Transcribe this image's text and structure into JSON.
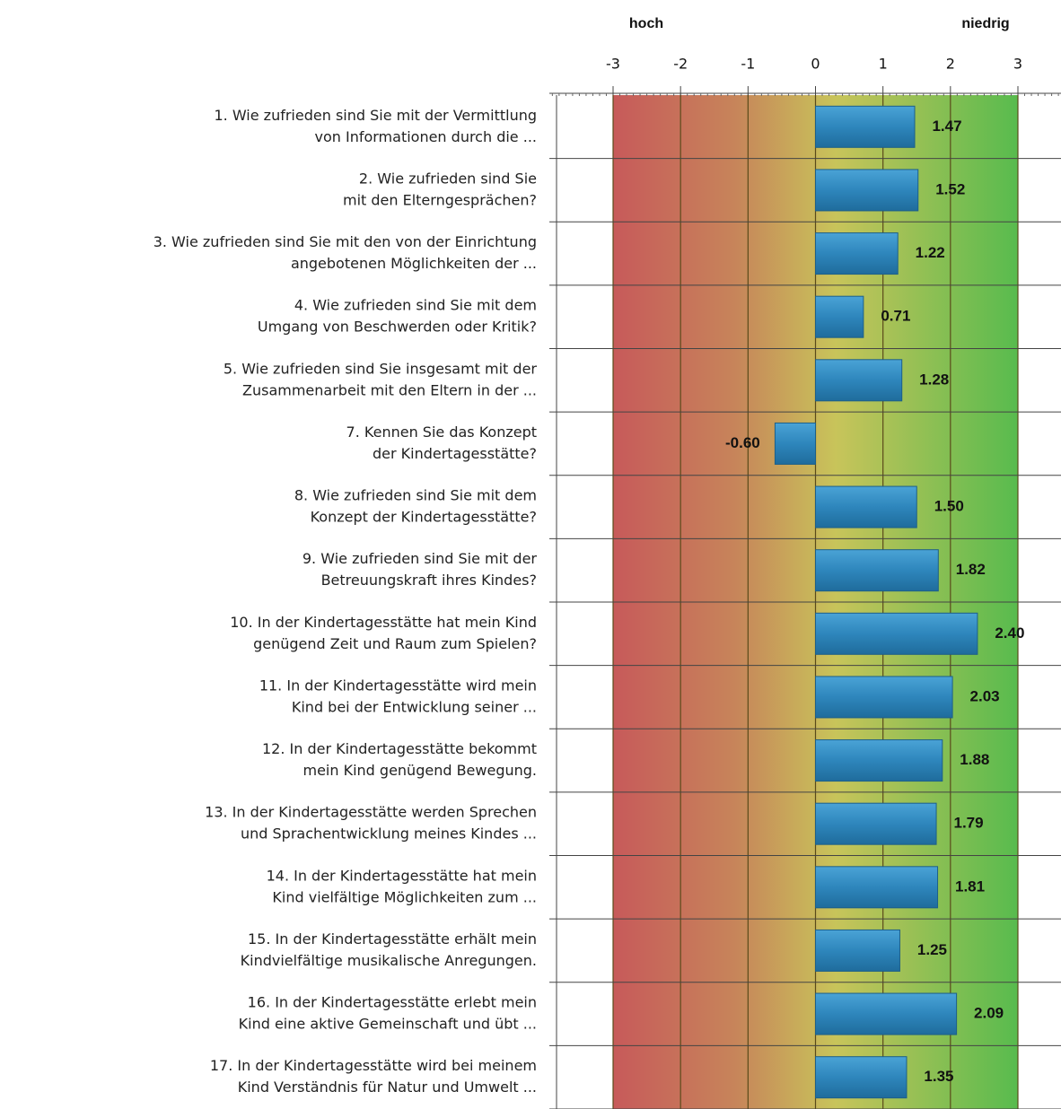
{
  "chart_data": {
    "type": "bar",
    "orientation": "horizontal",
    "left_label": "hoch",
    "right_label": "niedrig",
    "categories": [
      [
        "1. Wie zufrieden sind Sie mit der Vermittlung",
        "von Informationen durch die ..."
      ],
      [
        "2. Wie zufrieden sind Sie",
        "mit den Elterngesprächen?"
      ],
      [
        "3. Wie zufrieden sind Sie mit den von der Einrichtung",
        "angebotenen Möglichkeiten der ..."
      ],
      [
        "4. Wie zufrieden sind Sie mit dem",
        "Umgang von Beschwerden oder Kritik?"
      ],
      [
        "5. Wie zufrieden sind Sie insgesamt mit der",
        "Zusammenarbeit mit den Eltern in der ..."
      ],
      [
        "7. Kennen Sie das Konzept",
        "der Kindertagesstätte?"
      ],
      [
        "8. Wie zufrieden sind Sie mit dem",
        "Konzept der Kindertagesstätte?"
      ],
      [
        "9. Wie zufrieden sind Sie mit der",
        "Betreuungskraft ihres Kindes?"
      ],
      [
        "10. In der Kindertagesstätte hat mein Kind",
        "genügend Zeit und Raum zum Spielen?"
      ],
      [
        "11. In der Kindertagesstätte wird mein",
        "Kind bei der Entwicklung seiner ..."
      ],
      [
        "12. In der Kindertagesstätte bekommt",
        "mein Kind genügend Bewegung."
      ],
      [
        "13. In der Kindertagesstätte werden Sprechen",
        "und Sprachentwicklung meines Kindes ..."
      ],
      [
        "14. In der Kindertagesstätte hat mein",
        "Kind vielfältige Möglichkeiten zum ..."
      ],
      [
        "15. In der Kindertagesstätte erhält mein",
        "Kindvielfältige musikalische Anregungen."
      ],
      [
        "16. In der Kindertagesstätte erlebt mein",
        "Kind eine aktive Gemeinschaft und übt ..."
      ],
      [
        "17. In der Kindertagesstätte wird bei meinem",
        "Kind Verständnis für Natur und Umwelt ..."
      ]
    ],
    "values": [
      1.47,
      1.52,
      1.22,
      0.71,
      1.28,
      -0.6,
      1.5,
      1.82,
      2.4,
      2.03,
      1.88,
      1.79,
      1.81,
      1.25,
      2.09,
      1.35
    ],
    "value_labels": [
      "1.47",
      "1.52",
      "1.22",
      "0.71",
      "1.28",
      "-0.60",
      "1.50",
      "1.82",
      "2.40",
      "2.03",
      "1.88",
      "1.79",
      "1.81",
      "1.25",
      "2.09",
      "1.35"
    ],
    "color": "#2e8bc0",
    "xlim": [
      -3,
      3
    ],
    "xticks": [
      -3,
      -2,
      -1,
      0,
      1,
      2,
      3
    ]
  }
}
